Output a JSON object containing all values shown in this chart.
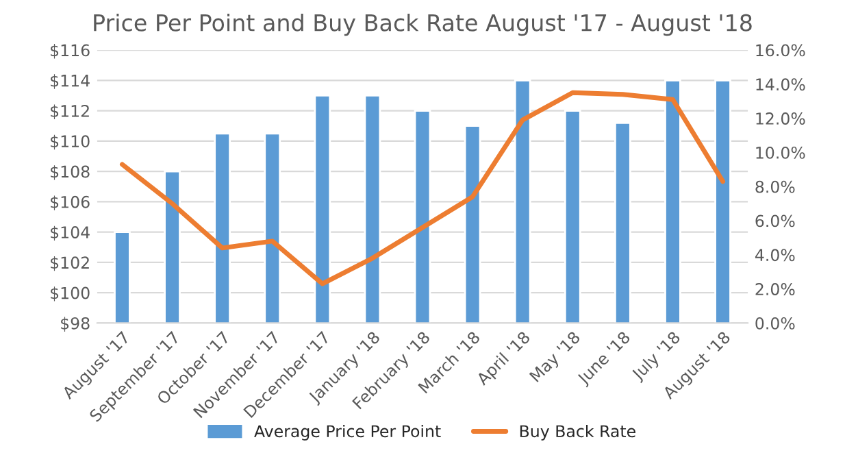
{
  "chart_data": {
    "type": "bar",
    "title": "Price Per Point and Buy Back Rate August '17 - August '18",
    "categories": [
      "August '17",
      "September '17",
      "October '17",
      "November '17",
      "December '17",
      "January '18",
      "February '18",
      "March '18",
      "April '18",
      "May '18",
      "June '18",
      "July '18",
      "August '18"
    ],
    "series": [
      {
        "name": "Average Price Per Point",
        "color": "#5b9bd5",
        "values": [
          104,
          108,
          110.5,
          110.5,
          113,
          113,
          112,
          111,
          114,
          112,
          111.2,
          114,
          114
        ]
      },
      {
        "name": "Buy Back Rate",
        "type": "line",
        "axis": "y2",
        "color": "#ed7d31",
        "values": [
          9.3,
          7.0,
          4.4,
          4.8,
          2.3,
          3.8,
          5.6,
          7.4,
          11.9,
          13.5,
          13.4,
          13.1,
          8.3
        ]
      }
    ],
    "ylim": [
      98,
      116
    ],
    "yticks": [
      {
        "value": 98,
        "label": "$98"
      },
      {
        "value": 100,
        "label": "$100"
      },
      {
        "value": 102,
        "label": "$102"
      },
      {
        "value": 104,
        "label": "$104"
      },
      {
        "value": 106,
        "label": "$106"
      },
      {
        "value": 108,
        "label": "$108"
      },
      {
        "value": 110,
        "label": "$110"
      },
      {
        "value": 112,
        "label": "$112"
      },
      {
        "value": 114,
        "label": "$114"
      },
      {
        "value": 116,
        "label": "$116"
      }
    ],
    "y2lim": [
      0,
      16
    ],
    "y2ticks": [
      {
        "value": 0,
        "label": "0.0%"
      },
      {
        "value": 2,
        "label": "2.0%"
      },
      {
        "value": 4,
        "label": "4.0%"
      },
      {
        "value": 6,
        "label": "6.0%"
      },
      {
        "value": 8,
        "label": "8.0%"
      },
      {
        "value": 10,
        "label": "10.0%"
      },
      {
        "value": 12,
        "label": "12.0%"
      },
      {
        "value": 14,
        "label": "14.0%"
      },
      {
        "value": 16,
        "label": "16.0%"
      }
    ],
    "grid": "y",
    "legend": "bottom"
  }
}
